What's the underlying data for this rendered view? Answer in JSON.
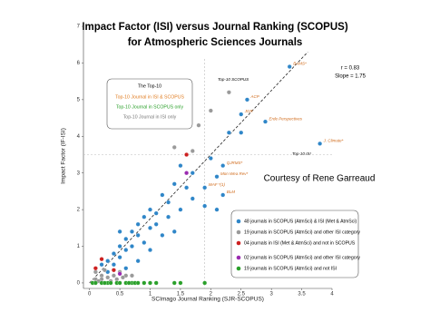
{
  "chart_data": {
    "type": "scatter",
    "title": "Impact Factor (ISI) versus Journal Ranking (SCOPUS)",
    "subtitle": "for Atmospheric Sciences Journals",
    "x_label": "SCImago Journal Ranking (SJR-SCOPUS)",
    "y_label": "Impact Factor (IF-ISI)",
    "xlim": [
      -0.1,
      4.0
    ],
    "ylim": [
      -0.15,
      7.1
    ],
    "xticks": [
      0,
      0.5,
      1,
      1.5,
      2,
      2.5,
      3,
      3.5,
      4
    ],
    "yticks": [
      0,
      1,
      2,
      3,
      4,
      5,
      6,
      7
    ],
    "fit_line": {
      "x": [
        0,
        3.6
      ],
      "y": [
        0,
        6.3
      ]
    },
    "reference_x": 1.9,
    "reference_y": 3.5,
    "stats": [
      "r = 0.83",
      "Slope = 1.75"
    ],
    "credit": "Courtesy of Rene Garreaud",
    "annotations": [
      "Top-10 SCOPUS",
      "Top-10 ISI"
    ],
    "top10_legend": {
      "title": "The Top-10",
      "entries": [
        {
          "text": "Top-10 Journal in ISI & SCOPUS",
          "color": "#e07b1f"
        },
        {
          "text": "Top-10 Journal in SCOPUS only",
          "color": "#2aa02a"
        },
        {
          "text": "Top-10 Journal in ISI only",
          "color": "#777777"
        }
      ]
    },
    "series": [
      {
        "name": "48 journals in SCOPUS (AtmSci) & ISI (Met & AtmSci)",
        "color": "#2f86c8",
        "x": [
          3.3,
          2.6,
          2.5,
          2.9,
          3.8,
          2.3,
          2.5,
          2.1,
          1.9,
          2.2,
          2.1,
          1.9,
          1.7,
          1.5,
          1.4,
          1.6,
          1.2,
          1.3,
          1.0,
          1.1,
          0.9,
          0.8,
          1.0,
          0.7,
          0.8,
          0.6,
          0.5,
          0.7,
          0.6,
          0.4,
          0.5,
          0.3,
          0.4,
          0.6,
          0.2,
          1.2,
          1.5,
          0.9,
          1.1,
          1.3,
          0.3,
          0.8,
          1.0,
          1.4,
          1.7,
          0.5,
          2.2,
          2.0
        ],
        "y": [
          5.9,
          5.0,
          4.6,
          4.4,
          3.8,
          4.1,
          4.1,
          2.9,
          2.6,
          2.4,
          2.0,
          2.1,
          3.0,
          3.2,
          2.7,
          2.6,
          2.4,
          2.2,
          2.0,
          1.9,
          1.8,
          1.6,
          1.5,
          1.4,
          1.3,
          1.2,
          1.0,
          1.0,
          0.9,
          0.8,
          0.7,
          0.6,
          0.5,
          0.4,
          0.5,
          1.3,
          2.0,
          1.1,
          1.6,
          1.8,
          0.3,
          0.6,
          0.9,
          1.4,
          2.3,
          1.4,
          3.2,
          3.4
        ],
        "point_labels": [
          "BAMS*",
          "ACP",
          "JGR",
          "Erde Perspectives",
          "J. Climate*",
          null,
          null,
          "Mon Wea Rev*",
          "WAF *(1)",
          "BLM",
          null,
          null,
          null,
          null,
          null,
          null,
          null,
          null,
          null,
          null,
          null,
          null,
          null,
          null,
          null,
          null,
          null,
          null,
          null,
          null,
          null,
          null,
          null,
          null,
          null,
          null,
          null,
          null,
          null,
          null,
          null,
          null,
          null,
          null,
          null,
          null,
          "QJRMS*",
          null
        ]
      },
      {
        "name": "19 journals in SCOPUS (AtmSci) and other ISI category",
        "color": "#9a9a9a",
        "x": [
          2.0,
          1.8,
          1.7,
          1.4,
          2.3,
          0.2,
          0.1,
          0.2,
          0.3,
          0.4,
          0.5,
          0.1,
          0.6,
          0.25,
          0.15,
          0.35,
          0.45,
          0.55,
          0.7
        ],
        "y": [
          4.7,
          4.3,
          3.6,
          3.7,
          5.2,
          0.2,
          0.3,
          0.1,
          0.15,
          0.2,
          0.3,
          0.1,
          0.2,
          0.35,
          0.05,
          0.05,
          0.1,
          0.15,
          0.2
        ]
      },
      {
        "name": "04 journals in ISI (Met & AtmSci) and not in SCOPUS",
        "color": "#cc2020",
        "x": [
          1.6,
          0.1,
          0.4,
          0.2
        ],
        "y": [
          3.5,
          0.4,
          0.35,
          0.65
        ]
      },
      {
        "name": "02 journals in SCOPUS (AtmSci) and other ISI category",
        "color": "#9a2bb0",
        "x": [
          1.6,
          0.5
        ],
        "y": [
          3.0,
          0.25
        ]
      },
      {
        "name": "19 journals in SCOPUS (AtmSci) and not ISI",
        "color": "#2aa02a",
        "x": [
          0.05,
          0.1,
          0.2,
          0.3,
          0.35,
          0.45,
          0.5,
          0.6,
          0.7,
          0.75,
          0.9,
          1.0,
          1.1,
          1.4,
          1.5,
          1.9,
          0.8,
          0.25,
          0.65
        ],
        "y": [
          0,
          0,
          0,
          0,
          0,
          0,
          0,
          0,
          0,
          0,
          0,
          0,
          0,
          0,
          0,
          0,
          0,
          0,
          0
        ]
      }
    ]
  }
}
